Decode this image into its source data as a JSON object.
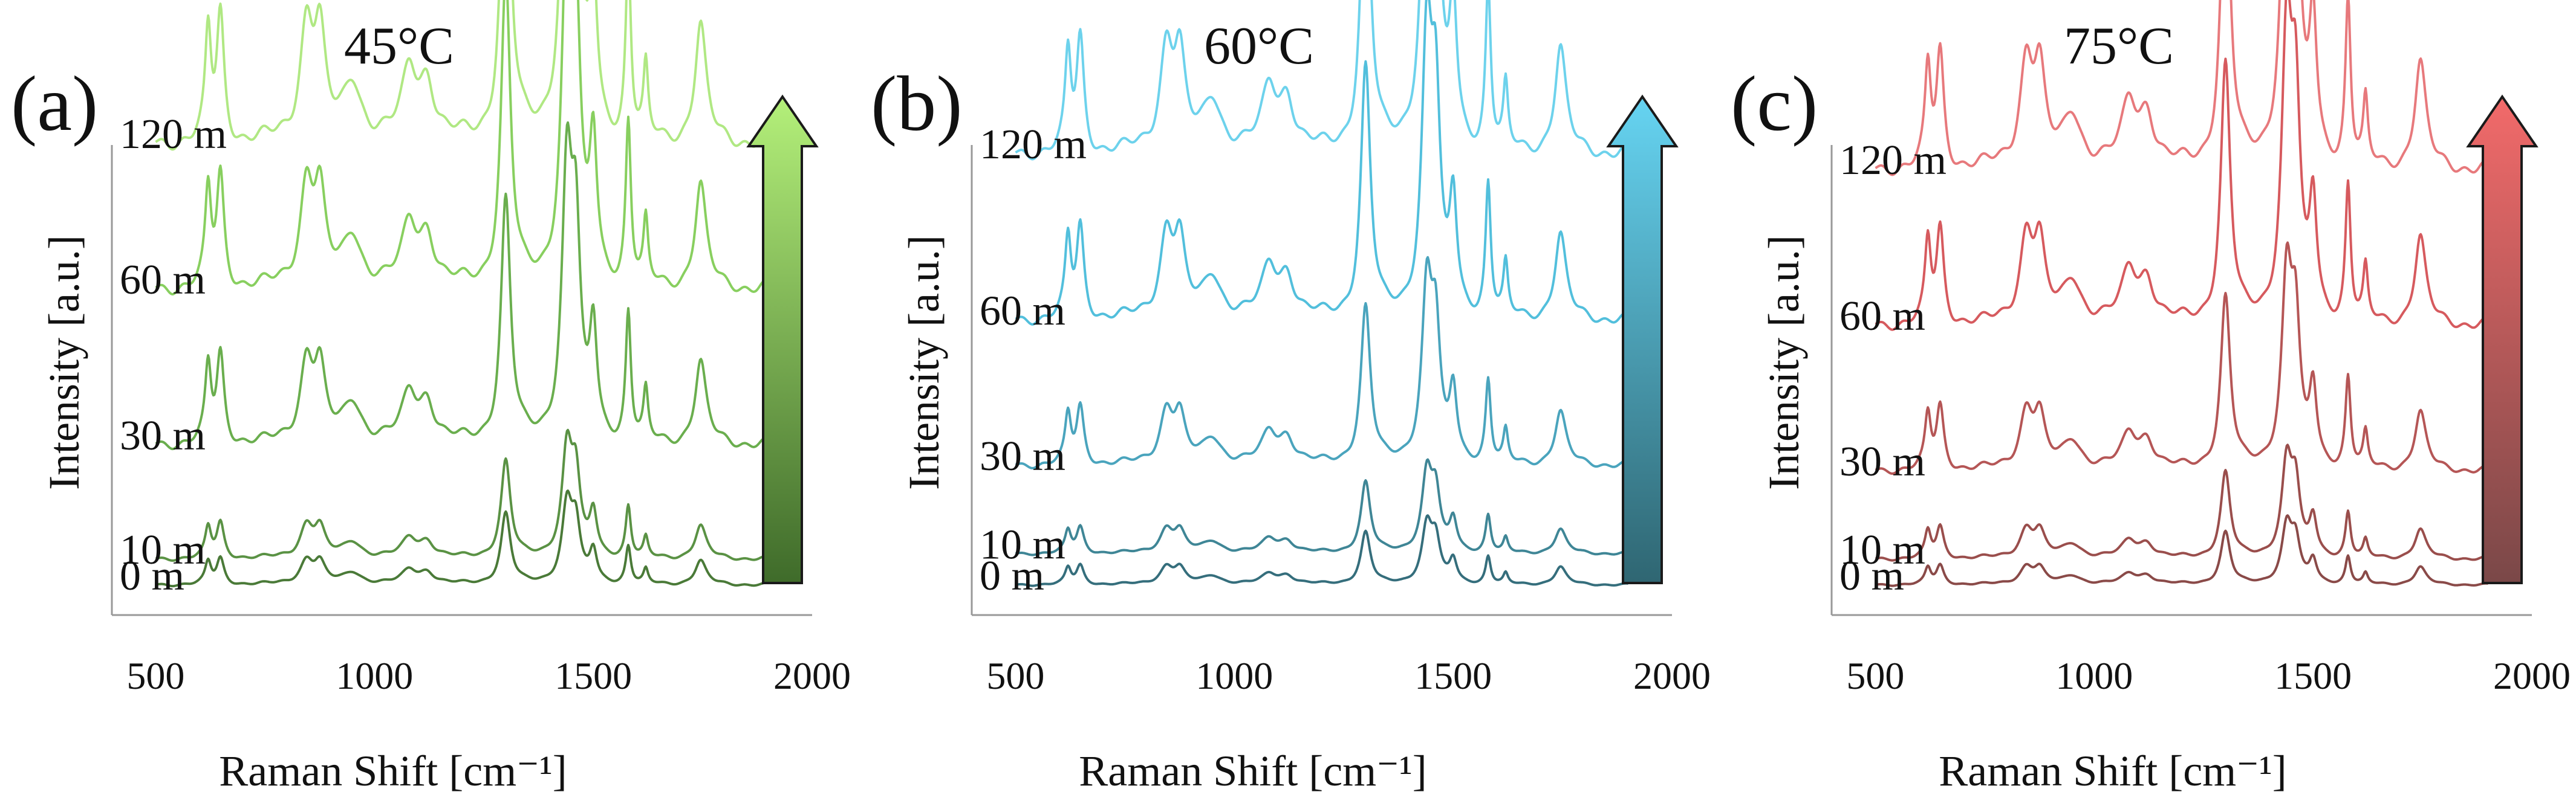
{
  "chart_data": [
    {
      "type": "line",
      "panel_label": "(a)",
      "title": "45°C",
      "xlabel": "Raman Shift [cm⁻¹]",
      "ylabel": "Intensity [a.u.]",
      "xlim": [
        400,
        2000
      ],
      "xticks": [
        500,
        1000,
        1500,
        2000
      ],
      "x_range": [
        500,
        1900
      ],
      "scale": [
        0.19,
        0.26,
        0.65,
        0.82,
        0.93
      ],
      "offset": [
        0,
        0.05,
        0.27,
        0.57,
        0.85
      ],
      "arrow": {
        "top_color": "#b4f07a",
        "bottom_color": "#3f6b2a"
      },
      "series": [
        {
          "name": "0 m",
          "color": "#4a7a38"
        },
        {
          "name": "10 m",
          "color": "#5a9244"
        },
        {
          "name": "30 m",
          "color": "#6aae4e"
        },
        {
          "name": "60 m",
          "color": "#88cf5f"
        },
        {
          "name": "120 m",
          "color": "#b0e883"
        }
      ],
      "peaks": [
        {
          "x": 620,
          "w": 8,
          "h": 0.22
        },
        {
          "x": 648,
          "w": 10,
          "h": 0.26
        },
        {
          "x": 845,
          "w": 18,
          "h": 0.24
        },
        {
          "x": 875,
          "w": 15,
          "h": 0.2
        },
        {
          "x": 950,
          "w": 25,
          "h": 0.12
        },
        {
          "x": 1080,
          "w": 20,
          "h": 0.14
        },
        {
          "x": 1120,
          "w": 20,
          "h": 0.12
        },
        {
          "x": 1300,
          "w": 13,
          "h": 0.72
        },
        {
          "x": 1440,
          "w": 14,
          "h": 0.78
        },
        {
          "x": 1460,
          "w": 12,
          "h": 0.55
        },
        {
          "x": 1500,
          "w": 10,
          "h": 0.32
        },
        {
          "x": 1580,
          "w": 7,
          "h": 0.38
        },
        {
          "x": 1620,
          "w": 6,
          "h": 0.14
        },
        {
          "x": 1745,
          "w": 15,
          "h": 0.24
        }
      ]
    },
    {
      "type": "line",
      "panel_label": "(b)",
      "title": "60°C",
      "xlabel": "Raman Shift [cm⁻¹]",
      "ylabel": "Intensity [a.u.]",
      "xlim": [
        400,
        2000
      ],
      "xticks": [
        500,
        1000,
        1500,
        2000
      ],
      "x_range": [
        500,
        1900
      ],
      "scale": [
        0.14,
        0.19,
        0.42,
        0.67,
        0.83
      ],
      "offset": [
        0,
        0.06,
        0.23,
        0.51,
        0.83
      ],
      "arrow": {
        "top_color": "#66d4f2",
        "bottom_color": "#2f6672"
      },
      "series": [
        {
          "name": "0 m",
          "color": "#356e7c"
        },
        {
          "name": "10 m",
          "color": "#3f8696"
        },
        {
          "name": "30 m",
          "color": "#4aa4bd"
        },
        {
          "name": "60 m",
          "color": "#52bfdc"
        },
        {
          "name": "120 m",
          "color": "#6dd2ec"
        }
      ],
      "peaks": [
        {
          "x": 620,
          "w": 8,
          "h": 0.22
        },
        {
          "x": 648,
          "w": 10,
          "h": 0.26
        },
        {
          "x": 845,
          "w": 18,
          "h": 0.24
        },
        {
          "x": 875,
          "w": 15,
          "h": 0.2
        },
        {
          "x": 950,
          "w": 25,
          "h": 0.12
        },
        {
          "x": 1080,
          "w": 20,
          "h": 0.14
        },
        {
          "x": 1120,
          "w": 20,
          "h": 0.12
        },
        {
          "x": 1300,
          "w": 13,
          "h": 0.72
        },
        {
          "x": 1440,
          "w": 14,
          "h": 0.78
        },
        {
          "x": 1460,
          "w": 12,
          "h": 0.55
        },
        {
          "x": 1500,
          "w": 10,
          "h": 0.32
        },
        {
          "x": 1580,
          "w": 7,
          "h": 0.38
        },
        {
          "x": 1620,
          "w": 6,
          "h": 0.14
        },
        {
          "x": 1745,
          "w": 15,
          "h": 0.24
        }
      ]
    },
    {
      "type": "line",
      "panel_label": "(c)",
      "title": "75°C",
      "xlabel": "Raman Shift [cm⁻¹]",
      "ylabel": "Intensity [a.u.]",
      "xlim": [
        400,
        2000
      ],
      "xticks": [
        500,
        1000,
        1500,
        2000
      ],
      "x_range": [
        500,
        1900
      ],
      "scale": [
        0.14,
        0.23,
        0.46,
        0.69,
        0.84
      ],
      "offset": [
        0,
        0.05,
        0.22,
        0.5,
        0.8
      ],
      "arrow": {
        "top_color": "#f26a6a",
        "bottom_color": "#7a4848"
      },
      "series": [
        {
          "name": "0 m",
          "color": "#8a4a48"
        },
        {
          "name": "10 m",
          "color": "#9a4e4c"
        },
        {
          "name": "30 m",
          "color": "#b55656"
        },
        {
          "name": "60 m",
          "color": "#d65a5e"
        },
        {
          "name": "120 m",
          "color": "#e7797c"
        }
      ],
      "peaks": [
        {
          "x": 620,
          "w": 8,
          "h": 0.22
        },
        {
          "x": 648,
          "w": 10,
          "h": 0.26
        },
        {
          "x": 845,
          "w": 18,
          "h": 0.24
        },
        {
          "x": 875,
          "w": 15,
          "h": 0.2
        },
        {
          "x": 950,
          "w": 25,
          "h": 0.12
        },
        {
          "x": 1080,
          "w": 20,
          "h": 0.14
        },
        {
          "x": 1120,
          "w": 20,
          "h": 0.12
        },
        {
          "x": 1300,
          "w": 13,
          "h": 0.72
        },
        {
          "x": 1440,
          "w": 14,
          "h": 0.78
        },
        {
          "x": 1460,
          "w": 12,
          "h": 0.55
        },
        {
          "x": 1500,
          "w": 10,
          "h": 0.32
        },
        {
          "x": 1580,
          "w": 7,
          "h": 0.38
        },
        {
          "x": 1620,
          "w": 6,
          "h": 0.14
        },
        {
          "x": 1745,
          "w": 15,
          "h": 0.24
        }
      ]
    }
  ]
}
